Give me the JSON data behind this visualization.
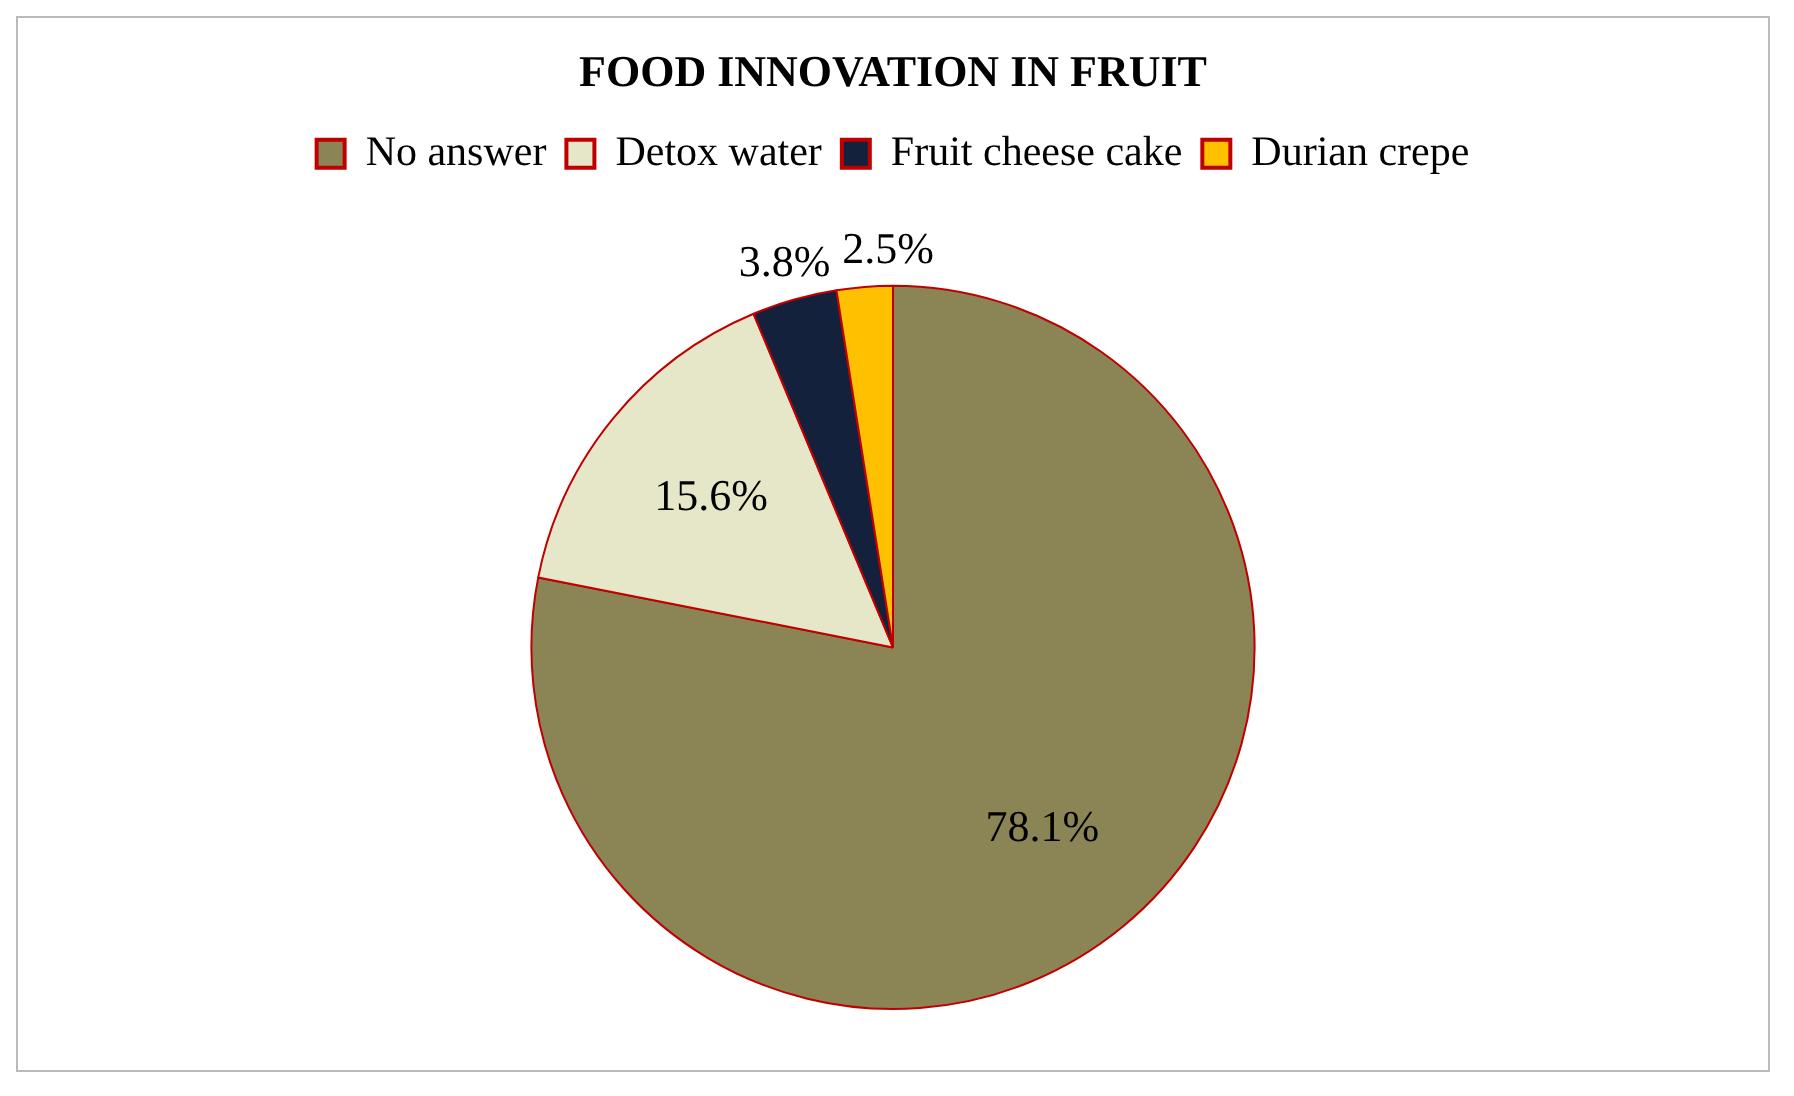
{
  "chart_data": {
    "type": "pie",
    "title": "FOOD INNOVATION IN FRUIT",
    "categories": [
      "No answer",
      "Detox water",
      "Fruit cheese cake",
      "Durian crepe"
    ],
    "values": [
      78.1,
      15.6,
      3.8,
      2.5
    ],
    "value_labels": [
      "78.1%",
      "15.6%",
      "3.8%",
      "2.5%"
    ],
    "colors": [
      "#8b8455",
      "#e6e6c8",
      "#14213d",
      "#ffc000"
    ],
    "legend": "top"
  }
}
